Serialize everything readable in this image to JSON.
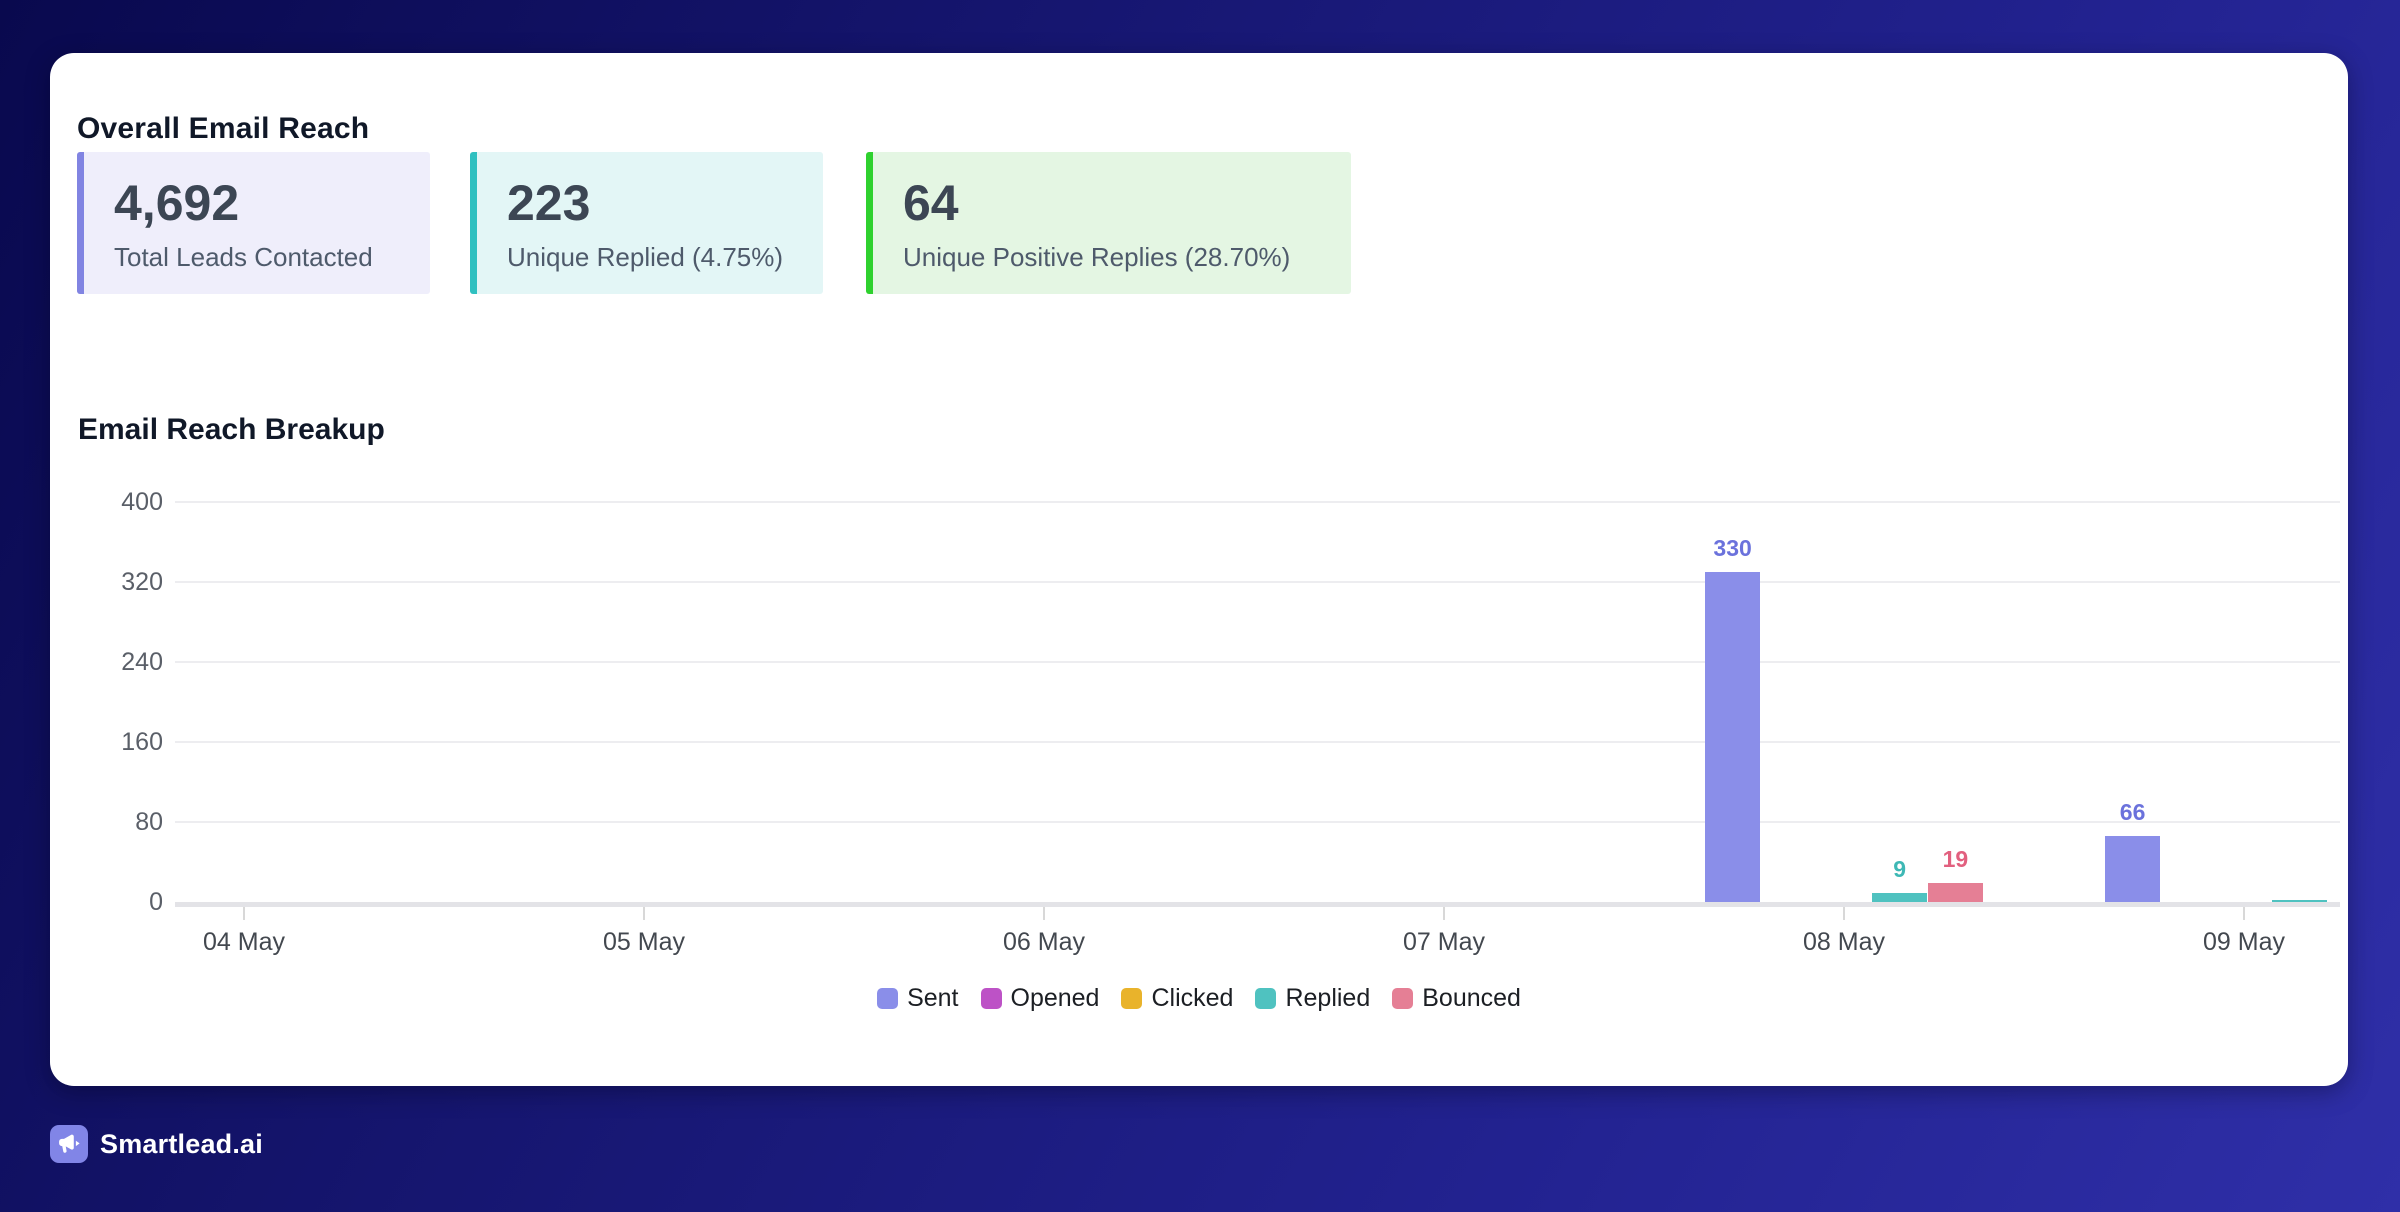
{
  "background": {
    "gradient_start": "#09094e",
    "gradient_end": "#2f2fa8"
  },
  "header": {
    "title": "Overall Email Reach"
  },
  "stats": {
    "cards": [
      {
        "value": "4,692",
        "label": "Total Leads Contacted",
        "accent": "#8184e2",
        "bg": "#efeefb"
      },
      {
        "value": "223",
        "label": "Unique Replied (4.75%)",
        "accent": "#2fc0c0",
        "bg": "#e3f6f6"
      },
      {
        "value": "64",
        "label": "Unique Positive Replies (28.70%)",
        "accent": "#2ed12e",
        "bg": "#e4f6e3"
      }
    ]
  },
  "section": {
    "title": "Email Reach Breakup"
  },
  "chart_data": {
    "type": "bar",
    "title": "Email Reach Breakup",
    "categories": [
      "04 May",
      "05 May",
      "06 May",
      "07 May",
      "08 May",
      "09 May"
    ],
    "series": [
      {
        "name": "Sent",
        "color": "#8a8ee9",
        "label_color": "#6b72dc",
        "values": [
          0,
          0,
          0,
          0,
          330,
          66
        ]
      },
      {
        "name": "Opened",
        "color": "#bd52c6",
        "label_color": "#bd52c6",
        "values": [
          0,
          0,
          0,
          0,
          0,
          0
        ]
      },
      {
        "name": "Clicked",
        "color": "#e9b32b",
        "label_color": "#e9b32b",
        "values": [
          0,
          0,
          0,
          0,
          0,
          0
        ]
      },
      {
        "name": "Replied",
        "color": "#4fc2c0",
        "label_color": "#3eb8b5",
        "values": [
          0,
          0,
          0,
          0,
          9,
          2
        ]
      },
      {
        "name": "Bounced",
        "color": "#e57f95",
        "label_color": "#e2607f",
        "values": [
          0,
          0,
          0,
          0,
          19,
          0
        ]
      }
    ],
    "y_ticks": [
      0,
      80,
      160,
      240,
      320,
      400
    ],
    "ylim": [
      0,
      400
    ],
    "grid": true,
    "legend_position": "bottom",
    "hide_labels_below": 5,
    "xlabel": "",
    "ylabel": ""
  },
  "footer": {
    "brand": "Smartlead.ai"
  }
}
